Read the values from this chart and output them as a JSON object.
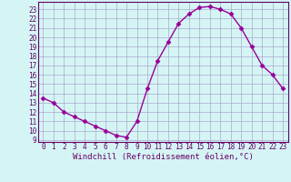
{
  "x": [
    0,
    1,
    2,
    3,
    4,
    5,
    6,
    7,
    8,
    9,
    10,
    11,
    12,
    13,
    14,
    15,
    16,
    17,
    18,
    19,
    20,
    21,
    22,
    23
  ],
  "y": [
    13.5,
    13.0,
    12.0,
    11.5,
    11.0,
    10.5,
    10.0,
    9.5,
    9.3,
    11.0,
    14.5,
    17.5,
    19.5,
    21.5,
    22.5,
    23.2,
    23.3,
    23.0,
    22.5,
    21.0,
    19.0,
    17.0,
    16.0,
    14.5
  ],
  "line_color": "#990099",
  "marker": "D",
  "marker_size": 2.5,
  "bg_color": "#d5f5f5",
  "grid_color": "#aaaacc",
  "axis_color": "#660066",
  "xlabel": "Windchill (Refroidissement éolien,°C)",
  "xlabel_fontsize": 6.5,
  "tick_fontsize": 5.5,
  "ylim": [
    8.8,
    23.8
  ],
  "xlim": [
    -0.5,
    23.5
  ],
  "yticks": [
    9,
    10,
    11,
    12,
    13,
    14,
    15,
    16,
    17,
    18,
    19,
    20,
    21,
    22,
    23
  ],
  "xticks": [
    0,
    1,
    2,
    3,
    4,
    5,
    6,
    7,
    8,
    9,
    10,
    11,
    12,
    13,
    14,
    15,
    16,
    17,
    18,
    19,
    20,
    21,
    22,
    23
  ]
}
